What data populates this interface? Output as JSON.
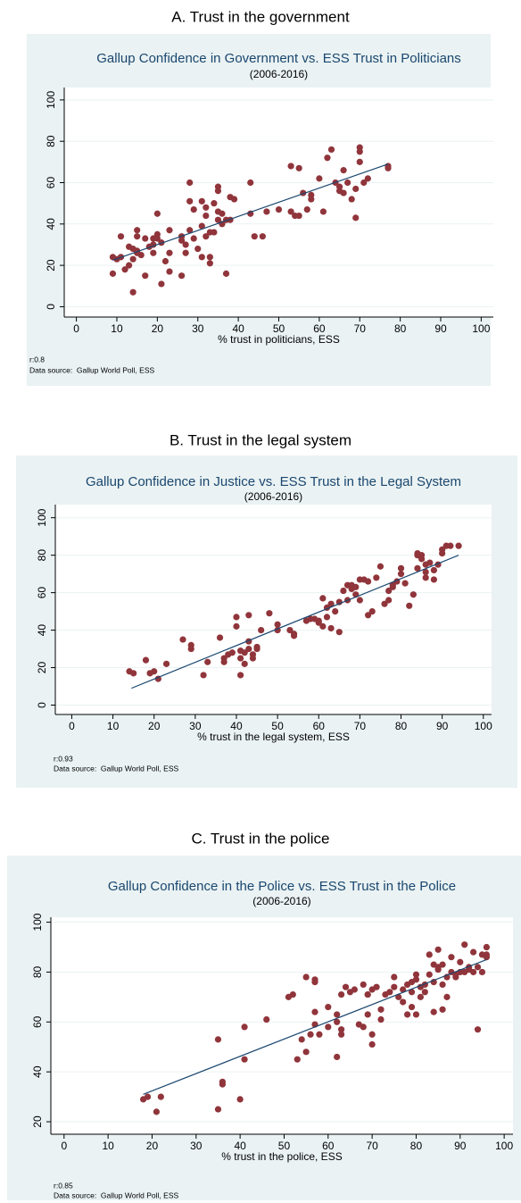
{
  "chart_data": [
    {
      "type": "scatter",
      "heading": "A. Trust in the government",
      "title": "Gallup Confidence in Government vs. ESS Trust in Politicians",
      "subtitle": "(2006-2016)",
      "xlabel": "% trust in politicians, ESS",
      "note": "r:0.8",
      "source": "Data source:  Gallup World Poll, ESS",
      "xlim": [
        -3,
        103
      ],
      "ylim": [
        -5,
        106
      ],
      "xticks": [
        0,
        10,
        20,
        30,
        40,
        50,
        60,
        70,
        80,
        90,
        100
      ],
      "yticks": [
        0,
        20,
        40,
        60,
        80,
        100
      ],
      "grid": true,
      "color": "#90353b",
      "fit_color": "#1a476f",
      "x": [
        9,
        9,
        10,
        11,
        11,
        12,
        13,
        13,
        14,
        14,
        14,
        15,
        15,
        15,
        15,
        16,
        17,
        17,
        18,
        19,
        19,
        19,
        20,
        20,
        20,
        21,
        21,
        22,
        23,
        23,
        23,
        26,
        26,
        26,
        27,
        27,
        28,
        28,
        28,
        29,
        29,
        30,
        31,
        31,
        31,
        32,
        32,
        32,
        33,
        33,
        33,
        34,
        34,
        35,
        35,
        35,
        35,
        36,
        36,
        37,
        37,
        38,
        38,
        39,
        43,
        43,
        44,
        46,
        47,
        50,
        53,
        53,
        54,
        55,
        55,
        56,
        57,
        58,
        58,
        60,
        61,
        62,
        63,
        64,
        65,
        65,
        66,
        66,
        67,
        68,
        69,
        69,
        70,
        70,
        70,
        71,
        72,
        77,
        77
      ],
      "y": [
        24,
        16,
        23,
        34,
        24,
        18,
        20,
        29,
        28,
        7,
        23,
        37,
        26,
        27,
        34,
        25,
        15,
        33,
        29,
        26,
        33,
        30,
        35,
        45,
        33,
        11,
        31,
        22,
        37,
        26,
        17,
        15,
        34,
        32,
        30,
        26,
        51,
        60,
        37,
        47,
        33,
        28,
        39,
        51,
        24,
        44,
        34,
        48,
        36,
        24,
        21,
        36,
        50,
        42,
        56,
        58,
        46,
        45,
        40,
        16,
        42,
        42,
        53,
        52,
        60,
        45,
        34,
        34,
        46,
        47,
        46,
        68,
        44,
        67,
        44,
        55,
        47,
        52,
        54,
        62,
        46,
        72,
        76,
        60,
        56,
        58,
        66,
        55,
        60,
        52,
        57,
        43,
        75,
        77,
        70,
        60,
        62,
        67,
        68
      ],
      "fit": {
        "x": [
          9,
          77
        ],
        "y": [
          22.5,
          69
        ]
      }
    },
    {
      "type": "scatter",
      "heading": "B. Trust in the legal system",
      "title": "Gallup Confidence in Justice vs. ESS Trust in the Legal System",
      "subtitle": "(2006-2016)",
      "xlabel": "% trust in the legal system, ESS",
      "note": "r:0.93",
      "source": "Data source:  Gallup World Poll, ESS",
      "xlim": [
        -4,
        102
      ],
      "ylim": [
        -5,
        107
      ],
      "xticks": [
        0,
        10,
        20,
        30,
        40,
        50,
        60,
        70,
        80,
        90,
        100
      ],
      "yticks": [
        0,
        20,
        40,
        60,
        80,
        100
      ],
      "grid": true,
      "color": "#90353b",
      "fit_color": "#1a476f",
      "x": [
        14,
        15,
        18,
        19,
        20,
        21,
        23,
        27,
        29,
        29,
        32,
        33,
        36,
        37,
        37,
        38,
        39,
        40,
        40,
        41,
        41,
        41,
        42,
        42,
        43,
        43,
        43,
        44,
        44,
        45,
        45,
        46,
        48,
        50,
        50,
        53,
        54,
        54,
        57,
        58,
        59,
        60,
        60,
        61,
        61,
        62,
        62,
        63,
        63,
        64,
        65,
        65,
        66,
        67,
        67,
        68,
        68,
        69,
        69,
        70,
        70,
        71,
        72,
        72,
        73,
        74,
        75,
        76,
        77,
        77,
        78,
        78,
        79,
        80,
        80,
        81,
        82,
        83,
        84,
        84,
        84,
        85,
        85,
        86,
        86,
        86,
        87,
        88,
        88,
        89,
        90,
        90,
        91,
        92,
        94
      ],
      "y": [
        18,
        17,
        24,
        17,
        18,
        14,
        22,
        35,
        32,
        30,
        16,
        23,
        36,
        25,
        23,
        27,
        28,
        42,
        47,
        29,
        16,
        25,
        28,
        22,
        48,
        34,
        30,
        27,
        25,
        31,
        30,
        40,
        49,
        43,
        40,
        40,
        38,
        37,
        45,
        46,
        46,
        44,
        45,
        42,
        57,
        52,
        47,
        54,
        41,
        50,
        55,
        39,
        61,
        64,
        56,
        64,
        62,
        59,
        63,
        67,
        56,
        67,
        66,
        48,
        50,
        68,
        74,
        54,
        56,
        61,
        63,
        64,
        66,
        73,
        70,
        65,
        53,
        59,
        73,
        80,
        81,
        78,
        80,
        68,
        71,
        75,
        76,
        67,
        72,
        75,
        83,
        81,
        85,
        85,
        85
      ],
      "fit": {
        "x": [
          14.5,
          94
        ],
        "y": [
          9,
          80
        ]
      }
    },
    {
      "type": "scatter",
      "heading": "C. Trust in the police",
      "title": "Gallup Confidence in the Police vs. ESS Trust in the Police",
      "subtitle": "(2006-2016)",
      "xlabel": "% trust in the police, ESS",
      "note": "r:0.85",
      "source": "Data source:  Gallup World Poll, ESS",
      "xlim": [
        -3,
        102
      ],
      "ylim": [
        15,
        102
      ],
      "xticks": [
        0,
        10,
        20,
        30,
        40,
        50,
        60,
        70,
        80,
        90,
        100
      ],
      "yticks": [
        20,
        40,
        60,
        80,
        100
      ],
      "grid": true,
      "color": "#90353b",
      "fit_color": "#1a476f",
      "x": [
        18,
        19,
        21,
        22,
        35,
        35,
        36,
        36,
        40,
        41,
        41,
        46,
        51,
        52,
        53,
        54,
        55,
        55,
        56,
        57,
        57,
        57,
        57,
        58,
        60,
        60,
        62,
        62,
        62,
        63,
        63,
        63,
        64,
        65,
        66,
        67,
        68,
        68,
        69,
        69,
        69,
        70,
        70,
        70,
        71,
        72,
        72,
        73,
        74,
        75,
        75,
        76,
        77,
        77,
        78,
        78,
        79,
        79,
        79,
        80,
        80,
        80,
        81,
        81,
        82,
        82,
        83,
        83,
        84,
        84,
        84,
        85,
        85,
        85,
        86,
        86,
        86,
        87,
        87,
        88,
        88,
        89,
        89,
        90,
        90,
        91,
        91,
        92,
        92,
        93,
        93,
        94,
        94,
        95,
        95,
        96,
        96,
        96
      ],
      "y": [
        29,
        30,
        24,
        30,
        53,
        25,
        35,
        36,
        29,
        45,
        58,
        61,
        70,
        71,
        45,
        53,
        78,
        48,
        55,
        64,
        59,
        77,
        76,
        55,
        66,
        58,
        46,
        60,
        63,
        71,
        55,
        57,
        74,
        72,
        73,
        59,
        58,
        75,
        71,
        71,
        63,
        51,
        55,
        73,
        74,
        65,
        61,
        71,
        72,
        74,
        78,
        70,
        68,
        73,
        75,
        63,
        76,
        72,
        66,
        63,
        77,
        79,
        74,
        70,
        75,
        72,
        87,
        79,
        76,
        83,
        64,
        89,
        81,
        82,
        65,
        75,
        83,
        70,
        78,
        80,
        86,
        79,
        78,
        80,
        84,
        91,
        80,
        81,
        82,
        88,
        80,
        57,
        82,
        87,
        80,
        90,
        87,
        86
      ],
      "fit": {
        "x": [
          18,
          96
        ],
        "y": [
          31,
          85
        ]
      }
    }
  ]
}
